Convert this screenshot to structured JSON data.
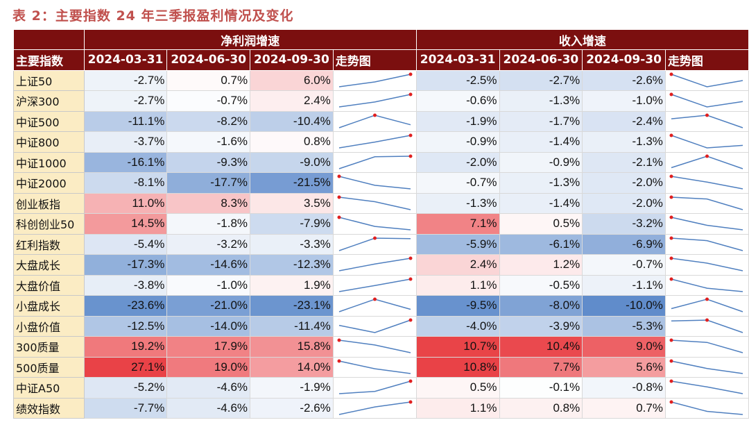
{
  "title": "表 2：主要指数 24 年三季报盈利情况及变化",
  "header": {
    "name_col": "主要指数",
    "group_profit": "净利润增速",
    "group_revenue": "收入增速",
    "dates": [
      "2024-03-31",
      "2024-06-30",
      "2024-09-30"
    ],
    "trend": "走势图"
  },
  "rows": [
    {
      "name": "上证50",
      "profit": [
        "-2.7%",
        "0.7%",
        "6.0%"
      ],
      "revenue": [
        "-2.5%",
        "-2.7%",
        "-2.6%"
      ]
    },
    {
      "name": "沪深300",
      "profit": [
        "-2.7%",
        "-0.7%",
        "2.4%"
      ],
      "revenue": [
        "-0.6%",
        "-1.3%",
        "-1.0%"
      ]
    },
    {
      "name": "中证500",
      "profit": [
        "-11.1%",
        "-8.2%",
        "-10.4%"
      ],
      "revenue": [
        "-1.9%",
        "-1.7%",
        "-2.4%"
      ]
    },
    {
      "name": "中证800",
      "profit": [
        "-3.7%",
        "-1.6%",
        "0.8%"
      ],
      "revenue": [
        "-0.9%",
        "-1.4%",
        "-1.3%"
      ]
    },
    {
      "name": "中证1000",
      "profit": [
        "-16.1%",
        "-9.3%",
        "-9.0%"
      ],
      "revenue": [
        "-2.0%",
        "-0.9%",
        "-2.1%"
      ]
    },
    {
      "name": "中证2000",
      "profit": [
        "-8.1%",
        "-17.7%",
        "-21.5%"
      ],
      "revenue": [
        "-0.7%",
        "-1.3%",
        "-2.0%"
      ]
    },
    {
      "name": "创业板指",
      "profit": [
        "11.0%",
        "8.3%",
        "3.5%"
      ],
      "revenue": [
        "-1.3%",
        "-1.4%",
        "-2.0%"
      ]
    },
    {
      "name": "科创创业50",
      "profit": [
        "14.5%",
        "-1.8%",
        "-7.9%"
      ],
      "revenue": [
        "7.1%",
        "0.5%",
        "-3.2%"
      ]
    },
    {
      "name": "红利指数",
      "profit": [
        "-5.4%",
        "-3.2%",
        "-3.3%"
      ],
      "revenue": [
        "-5.9%",
        "-6.1%",
        "-6.9%"
      ]
    },
    {
      "name": "大盘成长",
      "profit": [
        "-17.3%",
        "-14.6%",
        "-12.3%"
      ],
      "revenue": [
        "2.4%",
        "1.2%",
        "-0.7%"
      ]
    },
    {
      "name": "大盘价值",
      "profit": [
        "-3.8%",
        "-1.0%",
        "1.9%"
      ],
      "revenue": [
        "1.1%",
        "-0.5%",
        "-1.1%"
      ]
    },
    {
      "name": "小盘成长",
      "profit": [
        "-23.6%",
        "-21.0%",
        "-23.1%"
      ],
      "revenue": [
        "-9.5%",
        "-8.0%",
        "-10.0%"
      ]
    },
    {
      "name": "小盘价值",
      "profit": [
        "-12.5%",
        "-14.0%",
        "-11.4%"
      ],
      "revenue": [
        "-4.0%",
        "-3.9%",
        "-5.3%"
      ]
    },
    {
      "name": "300质量",
      "profit": [
        "19.2%",
        "17.9%",
        "15.8%"
      ],
      "revenue": [
        "10.7%",
        "10.4%",
        "9.0%"
      ]
    },
    {
      "name": "500质量",
      "profit": [
        "27.1%",
        "19.0%",
        "14.0%"
      ],
      "revenue": [
        "10.8%",
        "7.7%",
        "5.6%"
      ]
    },
    {
      "name": "中证A50",
      "profit": [
        "-5.2%",
        "-4.6%",
        "-1.9%"
      ],
      "revenue": [
        "0.5%",
        "-0.1%",
        "-0.8%"
      ]
    },
    {
      "name": "绩效指数",
      "profit": [
        "-7.7%",
        "-4.6%",
        "-2.6%"
      ],
      "revenue": [
        "1.1%",
        "0.8%",
        "0.7%"
      ]
    }
  ],
  "colors": {
    "header_bg": "#7b0f0f",
    "name_bg": "#fbecc4",
    "positive": "#e8383d",
    "negative": "#4a7cc4",
    "sparkline": "#4f7fbf",
    "sparkline_marker": "#e02020",
    "title": "#c0504d"
  }
}
